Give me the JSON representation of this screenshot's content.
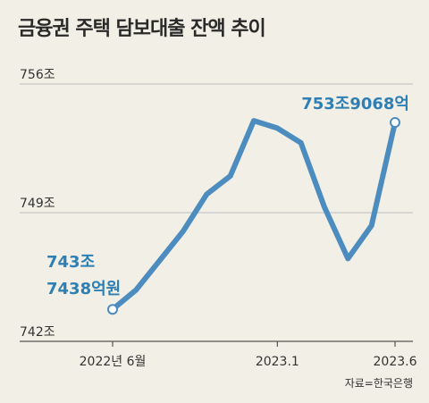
{
  "title": "금융권 주택 담보대출 잔액 추이",
  "source": "자료=한국은행",
  "colors": {
    "line": "#4d8cbe",
    "annotation": "#2e7fb4",
    "grid": "#b9bdc4",
    "background": "#f2efe6"
  },
  "chart_data": {
    "type": "line",
    "title": "금융권 주택 담보대출 잔액 추이",
    "ytick_labels": [
      "742조",
      "749조",
      "756조"
    ],
    "yticks": [
      742,
      749,
      756
    ],
    "ylim": [
      742,
      756
    ],
    "xtick_labels": [
      "2022년 6월",
      "2023.1",
      "2023.6"
    ],
    "x": [
      "2022-06",
      "2022-07",
      "2022-08",
      "2022-09",
      "2022-10",
      "2022-11",
      "2022-12",
      "2023-01",
      "2023-02",
      "2023-03",
      "2023-04",
      "2023-05",
      "2023-06"
    ],
    "values": [
      743.74,
      744.8,
      746.4,
      748.0,
      750.0,
      751.0,
      754.0,
      753.6,
      752.8,
      749.3,
      746.5,
      748.3,
      753.9068
    ],
    "grid": true,
    "annotations": [
      {
        "lines": [
          "743조",
          "7438억원"
        ],
        "x": "2022-06",
        "y": 743.7438
      },
      {
        "lines": [
          "753조9068억"
        ],
        "x": "2023-06",
        "y": 753.9068
      }
    ]
  }
}
